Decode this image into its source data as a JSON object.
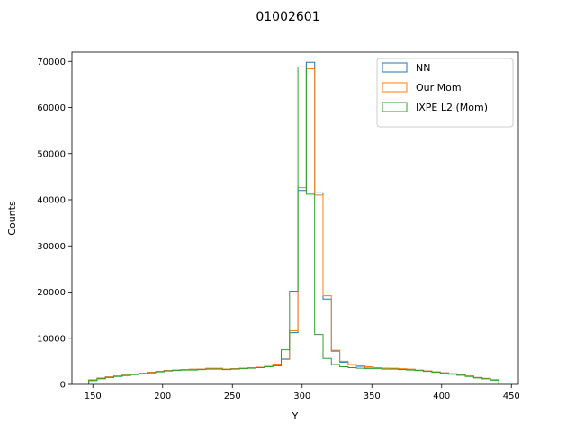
{
  "chart_data": {
    "type": "histogram",
    "title": "01002601",
    "xlabel": "Y",
    "ylabel": "Counts",
    "xlim": [
      135,
      455
    ],
    "ylim": [
      0,
      72000
    ],
    "xticks": [
      150,
      200,
      250,
      300,
      350,
      400,
      450
    ],
    "yticks": [
      0,
      10000,
      20000,
      30000,
      40000,
      50000,
      60000,
      70000
    ],
    "legend_position": "upper right",
    "bin_edges": [
      147,
      153,
      159,
      165,
      171,
      177,
      183,
      189,
      195,
      201,
      207,
      213,
      219,
      225,
      231,
      237,
      243,
      249,
      255,
      261,
      267,
      273,
      279,
      285,
      291,
      297,
      303,
      309,
      315,
      321,
      327,
      333,
      339,
      345,
      351,
      357,
      363,
      369,
      375,
      381,
      387,
      393,
      399,
      405,
      411,
      417,
      423,
      429,
      435,
      441
    ],
    "series": [
      {
        "name": "NN",
        "color": "#1f77b4",
        "values": [
          900,
          1300,
          1600,
          1800,
          2000,
          2200,
          2400,
          2600,
          2800,
          3000,
          3100,
          3200,
          3200,
          3300,
          3400,
          3400,
          3300,
          3400,
          3500,
          3600,
          3700,
          3900,
          4200,
          5500,
          11200,
          42000,
          69800,
          41500,
          18500,
          7200,
          4800,
          4200,
          3900,
          3700,
          3600,
          3500,
          3400,
          3300,
          3200,
          3000,
          2900,
          2700,
          2500,
          2300,
          2000,
          1800,
          1500,
          1300,
          1000
        ]
      },
      {
        "name": "Our Mom",
        "color": "#ff7f0e",
        "values": [
          1000,
          1400,
          1600,
          1800,
          2000,
          2200,
          2400,
          2600,
          2800,
          3000,
          3100,
          3200,
          3300,
          3300,
          3500,
          3500,
          3300,
          3400,
          3500,
          3600,
          3700,
          3900,
          4400,
          5400,
          11600,
          42600,
          68400,
          41000,
          19200,
          7400,
          5000,
          4300,
          4000,
          3800,
          3600,
          3500,
          3500,
          3400,
          3300,
          3100,
          2900,
          2700,
          2500,
          2300,
          2000,
          1800,
          1500,
          1300,
          1000
        ]
      },
      {
        "name": "IXPE L2 (Mom)",
        "color": "#2ca02c",
        "values": [
          800,
          1200,
          1500,
          1700,
          1900,
          2100,
          2300,
          2500,
          2700,
          2900,
          3000,
          3100,
          3100,
          3200,
          3300,
          3300,
          3200,
          3300,
          3400,
          3500,
          3600,
          3800,
          4000,
          7500,
          20200,
          68800,
          41200,
          10800,
          5600,
          4300,
          3800,
          3600,
          3500,
          3400,
          3400,
          3300,
          3300,
          3200,
          3100,
          3000,
          2800,
          2600,
          2400,
          2200,
          2000,
          1700,
          1400,
          1200,
          900
        ]
      }
    ]
  }
}
